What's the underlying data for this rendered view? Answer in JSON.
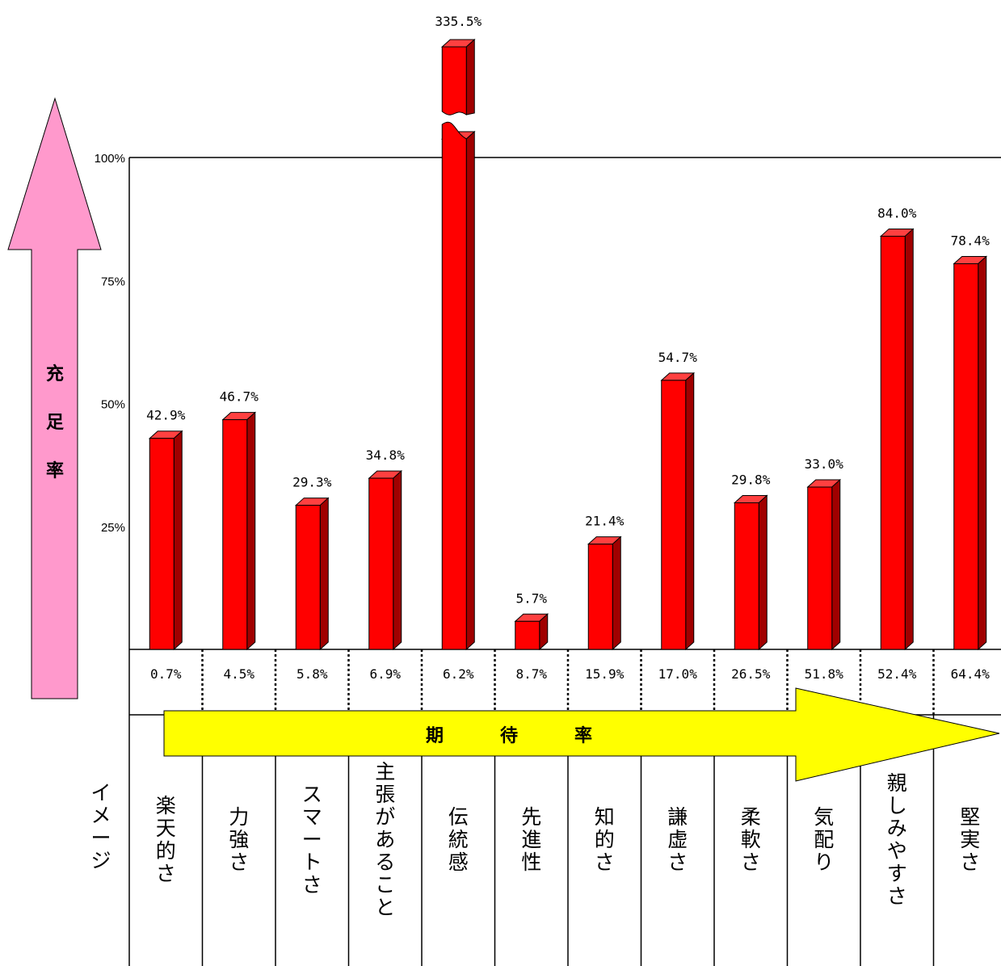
{
  "chart_data": {
    "type": "bar",
    "ylabel": "充足率",
    "xlabel": "期待率",
    "row_label": "イメージ",
    "yticks": [
      "25%",
      "50%",
      "75%",
      "100%"
    ],
    "ylim": [
      0,
      100
    ],
    "categories": [
      "楽天的さ",
      "力強さ",
      "スマートさ",
      "主張があること",
      "伝統感",
      "先進性",
      "知的さ",
      "謙虚さ",
      "柔軟さ",
      "気配り",
      "親しみやすさ",
      "堅実さ"
    ],
    "satisfaction_values": [
      42.9,
      46.7,
      29.3,
      34.8,
      335.5,
      5.7,
      21.4,
      54.7,
      29.8,
      33.0,
      84.0,
      78.4
    ],
    "satisfaction_labels": [
      "42.9%",
      "46.7%",
      "29.3%",
      "34.8%",
      "335.5%",
      "5.7%",
      "21.4%",
      "54.7%",
      "29.8%",
      "33.0%",
      "84.0%",
      "78.4%"
    ],
    "expectation_values": [
      0.7,
      4.5,
      5.8,
      6.9,
      6.2,
      8.7,
      15.9,
      17.0,
      26.5,
      51.8,
      52.4,
      64.4
    ],
    "expectation_labels": [
      "0.7%",
      "4.5%",
      "5.8%",
      "6.9%",
      "6.2%",
      "8.7%",
      "15.9%",
      "17.0%",
      "26.5%",
      "51.8%",
      "52.4%",
      "64.4%"
    ],
    "broken_bar_category": "伝統感",
    "bar_color": "#ff0000",
    "up_arrow_color": "#ff99cc",
    "right_arrow_color": "#ffff00"
  }
}
